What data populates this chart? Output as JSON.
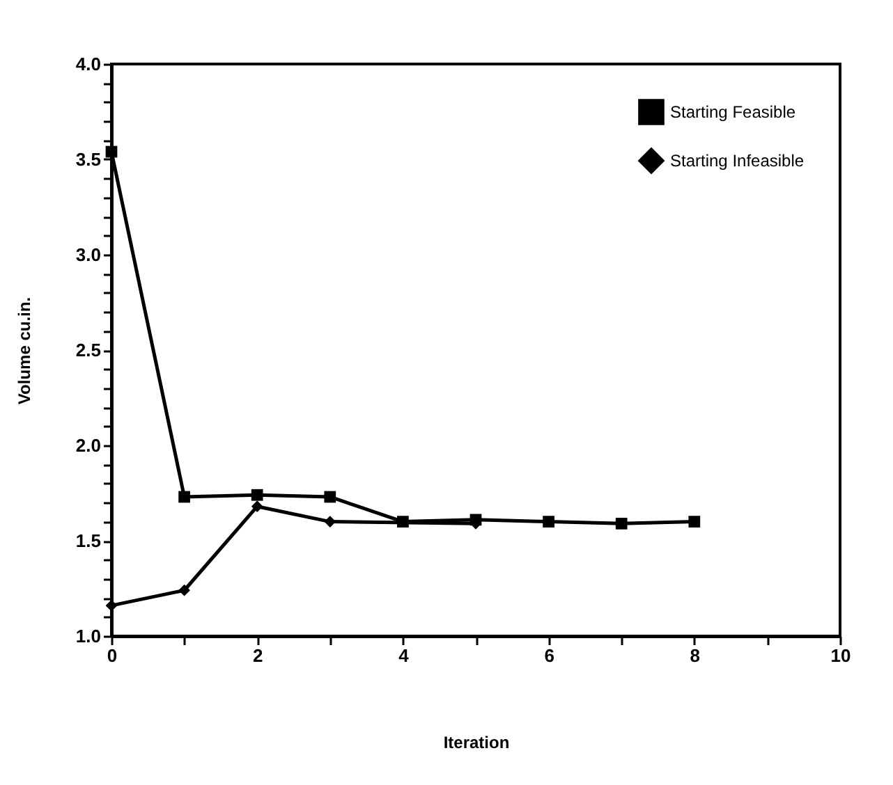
{
  "chart_data": {
    "type": "line",
    "xlabel": "Iteration",
    "ylabel": "Volume  cu.in.",
    "x": [
      0,
      1,
      2,
      3,
      4,
      5,
      6,
      7,
      8
    ],
    "series": [
      {
        "name": "Starting Feasible",
        "color": "#000000",
        "marker": "square",
        "values": [
          3.54,
          1.73,
          1.74,
          1.73,
          1.6,
          1.61,
          1.6,
          1.59,
          1.6
        ]
      },
      {
        "name": "Starting Infeasible",
        "color": "#000000",
        "marker": "diamond",
        "values": [
          1.16,
          1.24,
          1.68,
          1.6,
          null,
          1.59,
          null,
          null,
          null
        ]
      }
    ],
    "xlim": [
      0,
      10
    ],
    "xticks": [
      0,
      {
        "value": 1,
        "label": null
      },
      2,
      {
        "value": 3,
        "label": null
      },
      4,
      {
        "value": 5,
        "label": null
      },
      6,
      {
        "value": 7,
        "label": null
      },
      8,
      {
        "value": 9,
        "label": null
      },
      10
    ],
    "ylim": [
      1,
      4
    ],
    "yticks": [
      {
        "value": 1,
        "label": "1.0"
      },
      {
        "value": 1.1,
        "label": null
      },
      {
        "value": 1.2,
        "label": null
      },
      {
        "value": 1.3,
        "label": null
      },
      {
        "value": 1.4,
        "label": null
      },
      {
        "value": 1.5,
        "label": "1.5"
      },
      {
        "value": 1.6,
        "label": null
      },
      {
        "value": 1.7,
        "label": null
      },
      {
        "value": 1.8,
        "label": null
      },
      {
        "value": 1.9,
        "label": null
      },
      {
        "value": 2,
        "label": "2.0"
      },
      {
        "value": 2.1,
        "label": null
      },
      {
        "value": 2.2,
        "label": null
      },
      {
        "value": 2.3,
        "label": null
      },
      {
        "value": 2.4,
        "label": null
      },
      {
        "value": 2.5,
        "label": "2.5"
      },
      {
        "value": 2.6,
        "label": null
      },
      {
        "value": 2.7,
        "label": null
      },
      {
        "value": 2.8,
        "label": null
      },
      {
        "value": 2.9,
        "label": null
      },
      {
        "value": 3,
        "label": "3.0"
      },
      {
        "value": 3.1,
        "label": null
      },
      {
        "value": 3.2,
        "label": null
      },
      {
        "value": 3.3,
        "label": null
      },
      {
        "value": 3.4,
        "label": null
      },
      {
        "value": 3.5,
        "label": "3.5"
      },
      {
        "value": 3.6,
        "label": null
      },
      {
        "value": 3.7,
        "label": null
      },
      {
        "value": 3.8,
        "label": null
      },
      {
        "value": 3.9,
        "label": null
      },
      {
        "value": 4,
        "label": "4.0"
      }
    ],
    "grid": false,
    "legend": "top right",
    "line_style": "solid"
  }
}
